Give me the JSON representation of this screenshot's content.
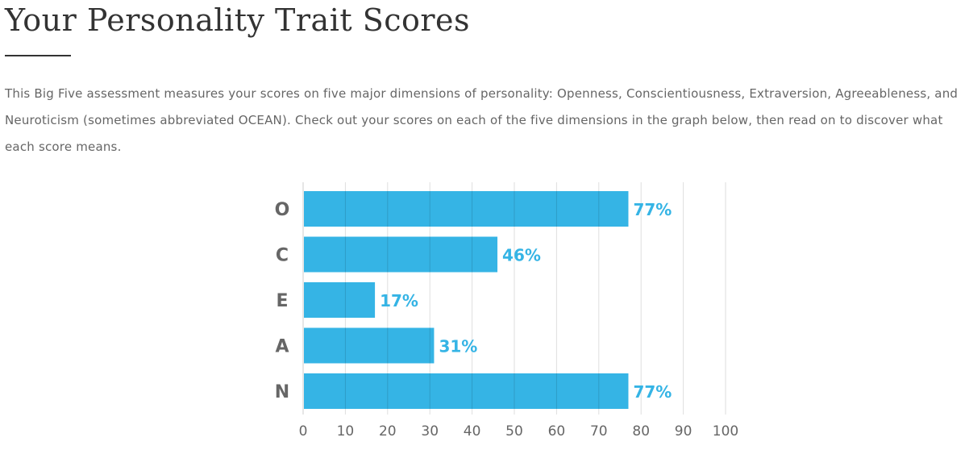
{
  "page": {
    "title": "Your Personality Trait Scores",
    "intro": "This Big Five assessment measures your scores on five major dimensions of personality: Openness, Conscientiousness, Extraversion, Agreeableness, and Neuroticism (sometimes abbreviated OCEAN). Check out your scores on each of the five dimensions in the graph below, then read on to discover what each score means."
  },
  "colors": {
    "bar": "#35b4e5",
    "value_label": "#35b4e5",
    "grid": "#dddddd",
    "text": "#666666"
  },
  "chart_data": {
    "type": "bar",
    "orientation": "horizontal",
    "categories": [
      "O",
      "C",
      "E",
      "A",
      "N"
    ],
    "values": [
      77,
      46,
      17,
      31,
      77
    ],
    "value_labels": [
      "77%",
      "46%",
      "17%",
      "31%",
      "77%"
    ],
    "xlim": [
      0,
      100
    ],
    "x_ticks": [
      "0",
      "10",
      "20",
      "30",
      "40",
      "50",
      "60",
      "70",
      "80",
      "90",
      "100"
    ],
    "grid": "vertical"
  }
}
